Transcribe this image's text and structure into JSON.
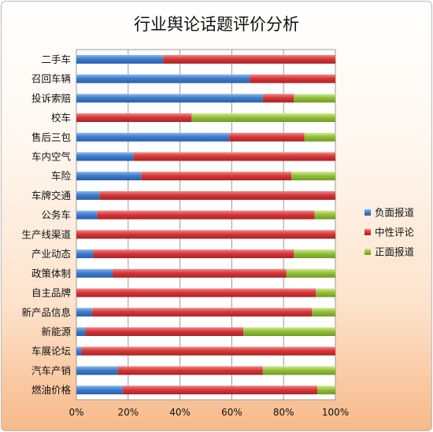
{
  "chart_data": {
    "type": "bar",
    "orientation": "horizontal",
    "stacked": "percent",
    "title": "行业舆论话题评价分析",
    "categories": [
      "二手车",
      "召回车辆",
      "投诉索赔",
      "校车",
      "售后三包",
      "车内空气",
      "车险",
      "车牌交通",
      "公务车",
      "生产线渠道",
      "产业动态",
      "政策体制",
      "自主品牌",
      "新产品信息",
      "新能源",
      "车展论坛",
      "汽车产销",
      "燃油价格"
    ],
    "series": [
      {
        "name": "负面报道",
        "color": "#3a78c8",
        "values": [
          33.5,
          67,
          72,
          0,
          59,
          22,
          25,
          9,
          8,
          0,
          6.5,
          14,
          0,
          6,
          3.5,
          2,
          16,
          18
        ]
      },
      {
        "name": "中性评论",
        "color": "#d7383a",
        "values": [
          66.5,
          33,
          12,
          44.5,
          29,
          78,
          58,
          91,
          84,
          100,
          77.5,
          67,
          92.5,
          85,
          61,
          98,
          56,
          75
        ]
      },
      {
        "name": "正面报道",
        "color": "#94c03b",
        "values": [
          0,
          0,
          16,
          55.5,
          12,
          0,
          17,
          0,
          8,
          0,
          16,
          19,
          7.5,
          9,
          35.5,
          0,
          28,
          7
        ]
      }
    ],
    "xaxis": {
      "ticks": [
        "0%",
        "20%",
        "40%",
        "60%",
        "80%",
        "100%"
      ],
      "range": [
        0,
        100
      ]
    },
    "grid": true,
    "legend": "right"
  }
}
